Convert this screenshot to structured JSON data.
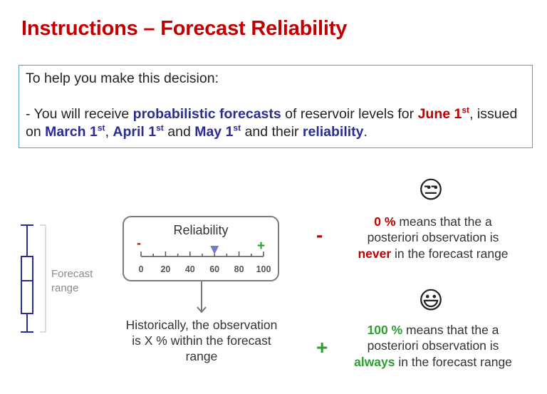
{
  "title": "Instructions – Forecast Reliability",
  "info": {
    "line1": "To help you make this decision:",
    "p_a": " - You will receive ",
    "p_b": "probabilistic forecasts",
    "p_c": " of reservoir levels for ",
    "p_d": "June 1",
    "p_d_sup": "st",
    "p_e": ", issued on ",
    "p_f": "March 1",
    "p_f_sup": "st",
    "p_g": ", ",
    "p_h": "April 1",
    "p_h_sup": "st",
    "p_i": " and ",
    "p_j": "May 1",
    "p_j_sup": "st",
    "p_k": " and their ",
    "p_l": "reliability",
    "p_m": "."
  },
  "forecast_range_label_1": "Forecast",
  "forecast_range_label_2": "range",
  "reliability": {
    "title": "Reliability",
    "minus": "-",
    "plus": "+",
    "ticks": [
      "0",
      "20",
      "40",
      "60",
      "80",
      "100"
    ],
    "marker_value": 60,
    "marker_color": "#7777cc"
  },
  "historical": {
    "line1": "Historically, the observation",
    "line2": "is X % within the forecast",
    "line3": "range"
  },
  "emojis": {
    "unamused": "😒",
    "smiling": "😃"
  },
  "zero": {
    "sign": "-",
    "value": "0 %",
    "t1": " means that the a",
    "t2": "posteriori observation is",
    "word": "never",
    "t3": " in the forecast range"
  },
  "hundred": {
    "sign": "+",
    "value": "100 %",
    "t1": " means that the a",
    "t2": "posteriori observation is",
    "word": "always",
    "t3": " in the forecast range"
  },
  "colors": {
    "title_red": "#c00000",
    "highlight_blue": "#2b2c91",
    "green": "#2ca02c",
    "box_border": "#5aa0cc"
  }
}
